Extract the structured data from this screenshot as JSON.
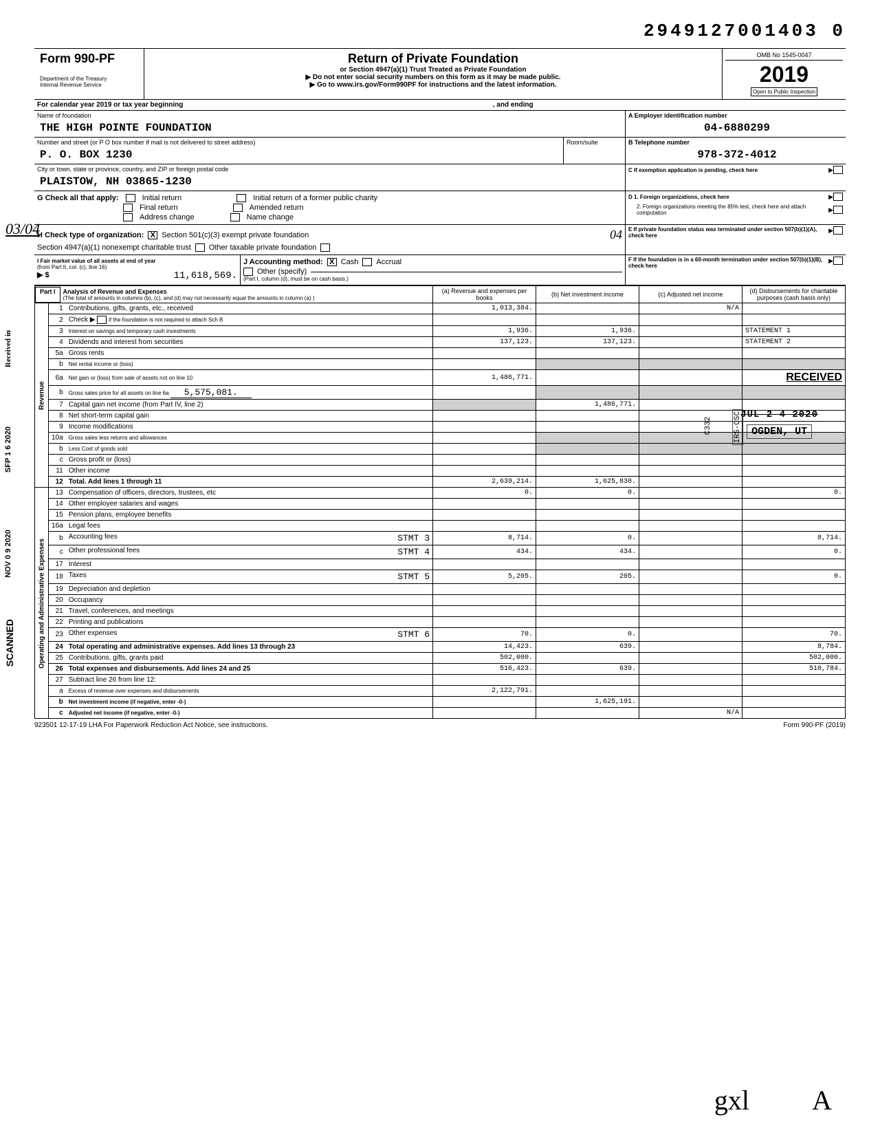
{
  "top_number": "29491270014030",
  "top_number_spaced": "2949127001403  0",
  "header": {
    "form": "Form 990-PF",
    "dept": "Department of the Treasury",
    "irs": "Internal Revenue Service",
    "title": "Return of Private Foundation",
    "subtitle1": "or Section 4947(a)(1) Trust Treated as Private Foundation",
    "subtitle2": "▶ Do not enter social security numbers on this form as it may be made public.",
    "subtitle3": "▶ Go to www.irs.gov/Form990PF for instructions and the latest information.",
    "omb": "OMB No  1545-0047",
    "year": "2019",
    "open": "Open to Public Inspection"
  },
  "calendar": {
    "prefix": "For calendar year 2019 or tax year beginning",
    "mid": ", and ending"
  },
  "foundation": {
    "nameLabel": "Name of foundation",
    "name": "THE HIGH POINTE FOUNDATION",
    "addrLabel": "Number and street (or P O  box number if mail is not delivered to street address)",
    "addr": "P. O. BOX 1230",
    "roomLabel": "Room/suite",
    "cityLabel": "City or town, state or province, country, and ZIP or foreign postal code",
    "city": "PLAISTOW, NH  03865-1230",
    "einLabel": "A  Employer identification number",
    "ein": "04-6880299",
    "telLabel": "B  Telephone number",
    "tel": "978-372-4012",
    "cLabel": "C  If exemption application is pending, check here"
  },
  "gRow": {
    "g": "G  Check all that apply:",
    "opts": [
      "Initial return",
      "Final return",
      "Address change",
      "Initial return of a former public charity",
      "Amended return",
      "Name change"
    ],
    "d1": "D  1. Foreign organizations, check here",
    "d2html": "2. Foreign organizations meeting the 85% test, check here and attach computation"
  },
  "hRow": {
    "h": "H  Check type of organization:",
    "h1": "Section 501(c)(3) exempt private foundation",
    "h2": "Section 4947(a)(1) nonexempt charitable trust",
    "h3": "Other taxable private foundation",
    "hand04": "04",
    "e": "E  If private foundation status was terminated under section 507(b)(1)(A), check here"
  },
  "iRow": {
    "i": "I  Fair market value of all assets at end of year",
    "from": "(from Part II, col. (c), line 16)",
    "dollar": "▶ $",
    "value": "11,618,569.",
    "j": "J  Accounting method:",
    "cash": "Cash",
    "accrual": "Accrual",
    "other": "Other (specify)",
    "note": "(Part I, column (d), must be on cash basis.)",
    "f": "F  If the foundation is in a 60-month termination under section 507(b)(1)(B), check here"
  },
  "partI": {
    "label": "Part I",
    "title": "Analysis of Revenue and Expenses",
    "subtitle": "(The total of amounts in columns (b), (c), and (d) may not necessarily equal the amounts in column (a) )",
    "colA": "(a) Revenue and expenses per books",
    "colB": "(b) Net investment income",
    "colC": "(c) Adjusted net income",
    "colD": "(d) Disbursements for charitable purposes (cash basis only)"
  },
  "sections": {
    "revenue": "Revenue",
    "opadmin": "Operating and Administrative Expenses"
  },
  "lines": [
    {
      "n": "1",
      "label": "Contributions, gifts, grants, etc., received",
      "a": "1,013,384.",
      "b": "",
      "c": "N/A",
      "d": ""
    },
    {
      "n": "2",
      "label": "Check ▶",
      "extra": "if the foundation is not required to attach Sch  B",
      "a": "",
      "b": "",
      "c": "",
      "d": "",
      "checkbox": true
    },
    {
      "n": "3",
      "label": "Interest on savings and temporary cash investments",
      "a": "1,936.",
      "b": "1,936.",
      "c": "",
      "d": "STATEMENT 1",
      "small": true
    },
    {
      "n": "4",
      "label": "Dividends and interest from securities",
      "a": "137,123.",
      "b": "137,123.",
      "c": "",
      "d": "STATEMENT 2"
    },
    {
      "n": "5a",
      "label": "Gross rents"
    },
    {
      "n": "b",
      "label": "Net rental income or (loss)",
      "small": true,
      "shadeBCD": true
    },
    {
      "n": "6a",
      "label": "Net gain or (loss) from sale of assets not on line 10",
      "a": "1,486,771.",
      "small": true,
      "dstamp": "RECEIVED"
    },
    {
      "n": "b",
      "label": "Gross sales price for all assets on line 6a",
      "inlineval": "5,575,081.",
      "small": true,
      "shadeBCD": true
    },
    {
      "n": "7",
      "label": "Capital gain net income (from Part IV, line 2)",
      "b": "1,486,771.",
      "shadeA": true
    },
    {
      "n": "8",
      "label": "Net short-term capital gain"
    },
    {
      "n": "9",
      "label": "Income modifications"
    },
    {
      "n": "10a",
      "label": "Gross sales less returns and allowances",
      "small": true,
      "shadeBCD": true
    },
    {
      "n": "b",
      "label": "Less  Cost of goods sold",
      "small": true,
      "shadeBCD": true
    },
    {
      "n": "c",
      "label": "Gross profit or (loss)"
    },
    {
      "n": "11",
      "label": "Other income"
    },
    {
      "n": "12",
      "label": "Total. Add lines 1 through 11",
      "a": "2,639,214.",
      "b": "1,625,830.",
      "bold": true
    },
    {
      "n": "13",
      "label": "Compensation of officers, directors, trustees, etc",
      "a": "0.",
      "b": "0.",
      "d": "0."
    },
    {
      "n": "14",
      "label": "Other employee salaries and wages"
    },
    {
      "n": "15",
      "label": "Pension plans, employee benefits"
    },
    {
      "n": "16a",
      "label": "Legal fees"
    },
    {
      "n": "b",
      "label": "Accounting fees",
      "stmt": "STMT 3",
      "a": "8,714.",
      "b": "0.",
      "d": "8,714."
    },
    {
      "n": "c",
      "label": "Other professional fees",
      "stmt": "STMT 4",
      "a": "434.",
      "b": "434.",
      "d": "0."
    },
    {
      "n": "17",
      "label": "Interest"
    },
    {
      "n": "18",
      "label": "Taxes",
      "stmt": "STMT 5",
      "a": "5,205.",
      "b": "205.",
      "d": "0."
    },
    {
      "n": "19",
      "label": "Depreciation and depletion"
    },
    {
      "n": "20",
      "label": "Occupancy"
    },
    {
      "n": "21",
      "label": "Travel, conferences, and meetings"
    },
    {
      "n": "22",
      "label": "Printing and publications"
    },
    {
      "n": "23",
      "label": "Other expenses",
      "stmt": "STMT 6",
      "a": "70.",
      "b": "0.",
      "d": "70."
    },
    {
      "n": "24",
      "label": "Total operating and administrative expenses. Add lines 13 through 23",
      "a": "14,423.",
      "b": "639.",
      "d": "8,784.",
      "bold": true,
      "twoLine": true
    },
    {
      "n": "25",
      "label": "Contributions, gifts, grants paid",
      "a": "502,000.",
      "d": "502,000."
    },
    {
      "n": "26",
      "label": "Total expenses and disbursements. Add lines 24 and 25",
      "a": "516,423.",
      "b": "639.",
      "d": "510,784.",
      "bold": true,
      "twoLine": true
    },
    {
      "n": "27",
      "label": "Subtract line 26 from line 12:"
    },
    {
      "n": "a",
      "label": "Excess of revenue over expenses and disbursements",
      "a": "2,122,791.",
      "small": true
    },
    {
      "n": "b",
      "label": "Net investment income (if negative, enter -0-)",
      "b": "1,625,191.",
      "small": true,
      "bold": true
    },
    {
      "n": "c",
      "label": "Adjusted net income (if negative, enter -0-)",
      "c": "N/A",
      "small": true,
      "bold": true
    }
  ],
  "stamps": {
    "received": "RECEIVED",
    "jul": "JUL 2 4 2020",
    "ogden": "OGDEN, UT",
    "irs": "IRS-OSC",
    "c332": "C332"
  },
  "marginNotes": {
    "frac": "03/04",
    "received": "Received in",
    "sfp": "SFP 1 6 2020",
    "nov": "NOV 0 9 2020",
    "scanned": "SCANNED"
  },
  "footer": {
    "left": "923501  12-17-19      LHA  For Paperwork Reduction Act Notice, see instructions.",
    "right": "Form 990-PF (2019)"
  }
}
